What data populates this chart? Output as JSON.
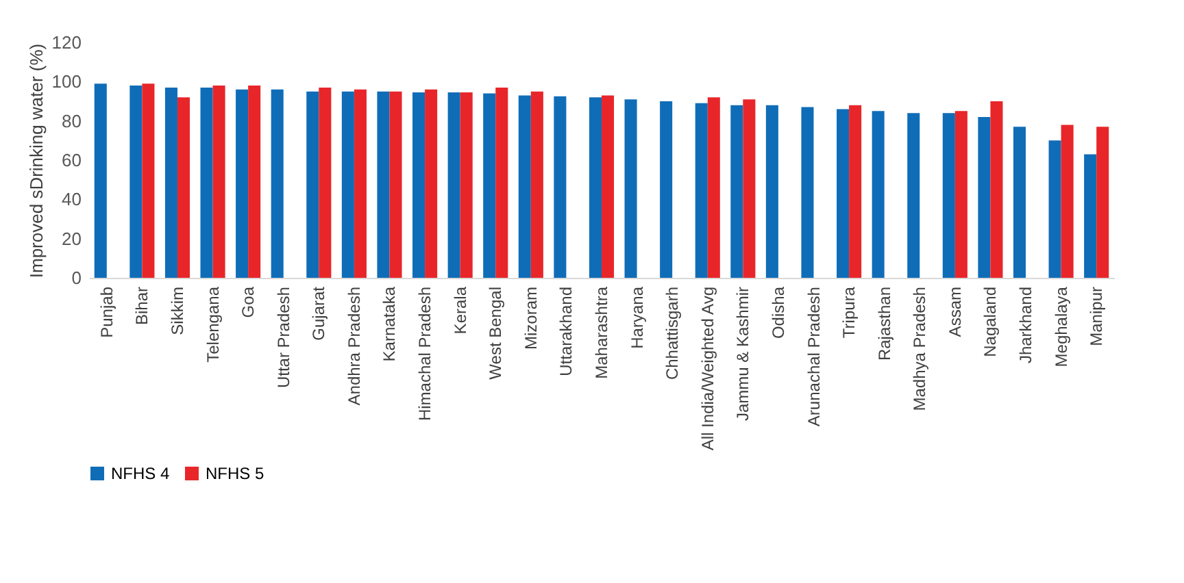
{
  "chart_data": {
    "type": "bar",
    "ylabel": "Improved sDrinking water  (%)",
    "categories": [
      "Punjab",
      "Bihar",
      "Sikkim",
      "Telengana",
      "Goa",
      "Uttar Pradesh",
      "Gujarat",
      "Andhra Pradesh",
      "Karnataka",
      "Himachal Pradesh",
      "Kerala",
      "West Bengal",
      "Mizoram",
      "Uttarakhand",
      "Maharashtra",
      "Haryana",
      "Chhattisgarh",
      "All India/Weighted Avg",
      "Jammu & Kashmir",
      "Odisha",
      "Arunachal Pradesh",
      "Tripura",
      "Rajasthan",
      "Madhya Pradesh",
      "Assam",
      "Nagaland",
      "Jharkhand",
      "Meghalaya",
      "Manipur"
    ],
    "series": [
      {
        "name": "NFHS 4",
        "color": "#0f6db8",
        "values": [
          99,
          98,
          97,
          97,
          96,
          96,
          95,
          95,
          95,
          94.5,
          94.5,
          94,
          93,
          92.5,
          92,
          91,
          90,
          89,
          88,
          88,
          87,
          86,
          85,
          84,
          84,
          82,
          77,
          70,
          63
        ]
      },
      {
        "name": "NFHS 5",
        "color": "#e8262a",
        "values": [
          null,
          99,
          92,
          98,
          98,
          null,
          97,
          96,
          95,
          96,
          94.5,
          97,
          95,
          null,
          93,
          null,
          null,
          92,
          91,
          null,
          null,
          88,
          null,
          null,
          85,
          90,
          null,
          78,
          77
        ]
      }
    ],
    "ylim": [
      0,
      120
    ],
    "yticks": [
      0,
      20,
      40,
      60,
      80,
      100,
      120
    ],
    "grid": false,
    "legend": "bottom"
  }
}
